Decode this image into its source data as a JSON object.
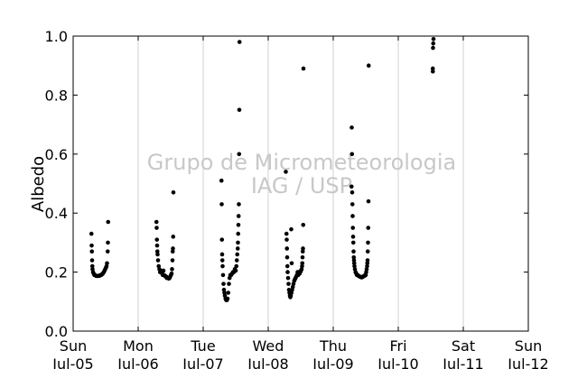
{
  "chart_data": {
    "type": "scatter",
    "title": "",
    "xlabel": "",
    "ylabel": "Albedo",
    "ylim": [
      0.0,
      1.0
    ],
    "y_ticks": [
      "0.0",
      "0.2",
      "0.4",
      "0.6",
      "0.8",
      "1.0"
    ],
    "xlim": [
      "2014-07-05 00:00",
      "2014-07-12 00:00"
    ],
    "x_ticks": [
      {
        "day": "Sun",
        "date": "Jul-05"
      },
      {
        "day": "Mon",
        "date": "Jul-06"
      },
      {
        "day": "Tue",
        "date": "Jul-07"
      },
      {
        "day": "Wed",
        "date": "Jul-08"
      },
      {
        "day": "Thu",
        "date": "Jul-09"
      },
      {
        "day": "Fri",
        "date": "Jul-10"
      },
      {
        "day": "Sat",
        "date": "Jul-11"
      },
      {
        "day": "Sun",
        "date": "Jul-12"
      }
    ],
    "grid": "vertical",
    "marker_color": "#000000",
    "watermark": [
      "Grupo de Micrometeorologia",
      "IAG / USP"
    ],
    "series": [
      {
        "points": [
          [
            "2014-07-05 06:45",
            0.33
          ],
          [
            "2014-07-05 06:50",
            0.29
          ],
          [
            "2014-07-05 06:55",
            0.27
          ],
          [
            "2014-07-05 07:00",
            0.24
          ],
          [
            "2014-07-05 07:05",
            0.22
          ],
          [
            "2014-07-05 07:10",
            0.21
          ],
          [
            "2014-07-05 07:20",
            0.2
          ],
          [
            "2014-07-05 07:35",
            0.195
          ],
          [
            "2014-07-05 07:50",
            0.19
          ],
          [
            "2014-07-05 08:05",
            0.19
          ],
          [
            "2014-07-05 08:20",
            0.188
          ],
          [
            "2014-07-05 08:35",
            0.187
          ],
          [
            "2014-07-05 08:50",
            0.187
          ],
          [
            "2014-07-05 09:05",
            0.187
          ],
          [
            "2014-07-05 09:20",
            0.187
          ],
          [
            "2014-07-05 09:35",
            0.188
          ],
          [
            "2014-07-05 09:50",
            0.188
          ],
          [
            "2014-07-05 10:05",
            0.19
          ],
          [
            "2014-07-05 10:20",
            0.19
          ],
          [
            "2014-07-05 10:35",
            0.192
          ],
          [
            "2014-07-05 10:50",
            0.194
          ],
          [
            "2014-07-05 11:05",
            0.197
          ],
          [
            "2014-07-05 11:20",
            0.2
          ],
          [
            "2014-07-05 11:35",
            0.205
          ],
          [
            "2014-07-05 11:50",
            0.21
          ],
          [
            "2014-07-05 12:05",
            0.215
          ],
          [
            "2014-07-05 12:20",
            0.22
          ],
          [
            "2014-07-05 12:30",
            0.23
          ],
          [
            "2014-07-05 12:45",
            0.27
          ],
          [
            "2014-07-05 12:50",
            0.3
          ],
          [
            "2014-07-05 12:55",
            0.37
          ],
          [
            "2014-07-06 06:45",
            0.37
          ],
          [
            "2014-07-06 06:50",
            0.35
          ],
          [
            "2014-07-06 06:55",
            0.31
          ],
          [
            "2014-07-06 07:00",
            0.29
          ],
          [
            "2014-07-06 07:05",
            0.27
          ],
          [
            "2014-07-06 07:10",
            0.26
          ],
          [
            "2014-07-06 07:20",
            0.24
          ],
          [
            "2014-07-06 07:35",
            0.22
          ],
          [
            "2014-07-06 07:50",
            0.21
          ],
          [
            "2014-07-06 08:05",
            0.2
          ],
          [
            "2014-07-06 08:20",
            0.205
          ],
          [
            "2014-07-06 08:35",
            0.2
          ],
          [
            "2014-07-06 08:50",
            0.195
          ],
          [
            "2014-07-06 09:05",
            0.19
          ],
          [
            "2014-07-06 09:20",
            0.205
          ],
          [
            "2014-07-06 09:35",
            0.19
          ],
          [
            "2014-07-06 09:50",
            0.188
          ],
          [
            "2014-07-06 10:05",
            0.185
          ],
          [
            "2014-07-06 10:20",
            0.185
          ],
          [
            "2014-07-06 10:35",
            0.18
          ],
          [
            "2014-07-06 10:50",
            0.18
          ],
          [
            "2014-07-06 11:05",
            0.18
          ],
          [
            "2014-07-06 11:20",
            0.178
          ],
          [
            "2014-07-06 11:35",
            0.18
          ],
          [
            "2014-07-06 11:50",
            0.185
          ],
          [
            "2014-07-06 12:05",
            0.19
          ],
          [
            "2014-07-06 12:20",
            0.195
          ],
          [
            "2014-07-06 12:30",
            0.21
          ],
          [
            "2014-07-06 12:40",
            0.24
          ],
          [
            "2014-07-06 12:45",
            0.27
          ],
          [
            "2014-07-06 12:50",
            0.28
          ],
          [
            "2014-07-06 12:55",
            0.32
          ],
          [
            "2014-07-06 13:00",
            0.47
          ],
          [
            "2014-07-07 06:45",
            0.51
          ],
          [
            "2014-07-07 06:50",
            0.43
          ],
          [
            "2014-07-07 06:55",
            0.31
          ],
          [
            "2014-07-07 07:00",
            0.26
          ],
          [
            "2014-07-07 07:05",
            0.24
          ],
          [
            "2014-07-07 07:10",
            0.22
          ],
          [
            "2014-07-07 07:20",
            0.19
          ],
          [
            "2014-07-07 07:30",
            0.16
          ],
          [
            "2014-07-07 07:40",
            0.14
          ],
          [
            "2014-07-07 07:50",
            0.13
          ],
          [
            "2014-07-07 08:00",
            0.12
          ],
          [
            "2014-07-07 08:15",
            0.11
          ],
          [
            "2014-07-07 08:30",
            0.105
          ],
          [
            "2014-07-07 08:45",
            0.105
          ],
          [
            "2014-07-07 09:00",
            0.11
          ],
          [
            "2014-07-07 09:15",
            0.13
          ],
          [
            "2014-07-07 09:30",
            0.16
          ],
          [
            "2014-07-07 09:45",
            0.18
          ],
          [
            "2014-07-07 10:00",
            0.19
          ],
          [
            "2014-07-07 10:20",
            0.19
          ],
          [
            "2014-07-07 10:40",
            0.195
          ],
          [
            "2014-07-07 11:00",
            0.2
          ],
          [
            "2014-07-07 11:20",
            0.2
          ],
          [
            "2014-07-07 11:40",
            0.21
          ],
          [
            "2014-07-07 12:00",
            0.205
          ],
          [
            "2014-07-07 12:15",
            0.22
          ],
          [
            "2014-07-07 12:25",
            0.24
          ],
          [
            "2014-07-07 12:35",
            0.26
          ],
          [
            "2014-07-07 12:45",
            0.28
          ],
          [
            "2014-07-07 12:50",
            0.3
          ],
          [
            "2014-07-07 12:55",
            0.33
          ],
          [
            "2014-07-07 13:00",
            0.36
          ],
          [
            "2014-07-07 13:05",
            0.39
          ],
          [
            "2014-07-07 13:10",
            0.43
          ],
          [
            "2014-07-07 13:15",
            0.6
          ],
          [
            "2014-07-07 13:20",
            0.75
          ],
          [
            "2014-07-07 13:25",
            0.98
          ],
          [
            "2014-07-08 06:30",
            0.54
          ],
          [
            "2014-07-08 06:45",
            0.33
          ],
          [
            "2014-07-08 06:50",
            0.31
          ],
          [
            "2014-07-08 06:55",
            0.28
          ],
          [
            "2014-07-08 07:00",
            0.25
          ],
          [
            "2014-07-08 07:05",
            0.22
          ],
          [
            "2014-07-08 07:10",
            0.2
          ],
          [
            "2014-07-08 07:20",
            0.18
          ],
          [
            "2014-07-08 07:30",
            0.16
          ],
          [
            "2014-07-08 07:40",
            0.14
          ],
          [
            "2014-07-08 07:50",
            0.13
          ],
          [
            "2014-07-08 08:00",
            0.12
          ],
          [
            "2014-07-08 08:10",
            0.115
          ],
          [
            "2014-07-08 08:20",
            0.12
          ],
          [
            "2014-07-08 08:35",
            0.13
          ],
          [
            "2014-07-08 08:50",
            0.14
          ],
          [
            "2014-07-08 09:05",
            0.15
          ],
          [
            "2014-07-08 09:20",
            0.16
          ],
          [
            "2014-07-08 09:35",
            0.17
          ],
          [
            "2014-07-08 09:50",
            0.175
          ],
          [
            "2014-07-08 10:05",
            0.18
          ],
          [
            "2014-07-08 10:20",
            0.185
          ],
          [
            "2014-07-08 10:35",
            0.19
          ],
          [
            "2014-07-08 10:50",
            0.2
          ],
          [
            "2014-07-08 11:05",
            0.19
          ],
          [
            "2014-07-08 11:20",
            0.2
          ],
          [
            "2014-07-08 11:35",
            0.195
          ],
          [
            "2014-07-08 11:50",
            0.2
          ],
          [
            "2014-07-08 12:05",
            0.205
          ],
          [
            "2014-07-08 12:20",
            0.21
          ],
          [
            "2014-07-08 12:30",
            0.22
          ],
          [
            "2014-07-08 12:35",
            0.23
          ],
          [
            "2014-07-08 12:40",
            0.25
          ],
          [
            "2014-07-08 12:45",
            0.27
          ],
          [
            "2014-07-08 12:50",
            0.28
          ],
          [
            "2014-07-08 12:55",
            0.36
          ],
          [
            "2014-07-08 13:00",
            0.89
          ],
          [
            "2014-07-08 08:30",
            0.345
          ],
          [
            "2014-07-08 08:40",
            0.23
          ],
          [
            "2014-07-09 06:45",
            0.49
          ],
          [
            "2014-07-09 06:50",
            0.69
          ],
          [
            "2014-07-09 06:55",
            0.6
          ],
          [
            "2014-07-09 07:00",
            0.47
          ],
          [
            "2014-07-09 07:05",
            0.43
          ],
          [
            "2014-07-09 07:10",
            0.39
          ],
          [
            "2014-07-09 07:15",
            0.35
          ],
          [
            "2014-07-09 07:20",
            0.32
          ],
          [
            "2014-07-09 07:25",
            0.3
          ],
          [
            "2014-07-09 07:30",
            0.27
          ],
          [
            "2014-07-09 07:35",
            0.25
          ],
          [
            "2014-07-09 07:40",
            0.24
          ],
          [
            "2014-07-09 07:45",
            0.23
          ],
          [
            "2014-07-09 07:50",
            0.22
          ],
          [
            "2014-07-09 08:00",
            0.21
          ],
          [
            "2014-07-09 08:15",
            0.2
          ],
          [
            "2014-07-09 08:30",
            0.195
          ],
          [
            "2014-07-09 08:45",
            0.19
          ],
          [
            "2014-07-09 09:00",
            0.19
          ],
          [
            "2014-07-09 09:15",
            0.188
          ],
          [
            "2014-07-09 09:30",
            0.186
          ],
          [
            "2014-07-09 09:45",
            0.185
          ],
          [
            "2014-07-09 10:00",
            0.184
          ],
          [
            "2014-07-09 10:15",
            0.183
          ],
          [
            "2014-07-09 10:30",
            0.182
          ],
          [
            "2014-07-09 10:45",
            0.183
          ],
          [
            "2014-07-09 11:00",
            0.185
          ],
          [
            "2014-07-09 11:15",
            0.186
          ],
          [
            "2014-07-09 11:30",
            0.187
          ],
          [
            "2014-07-09 11:45",
            0.19
          ],
          [
            "2014-07-09 12:00",
            0.19
          ],
          [
            "2014-07-09 12:10",
            0.2
          ],
          [
            "2014-07-09 12:20",
            0.21
          ],
          [
            "2014-07-09 12:30",
            0.22
          ],
          [
            "2014-07-09 12:35",
            0.23
          ],
          [
            "2014-07-09 12:40",
            0.24
          ],
          [
            "2014-07-09 12:45",
            0.27
          ],
          [
            "2014-07-09 12:50",
            0.3
          ],
          [
            "2014-07-09 12:55",
            0.35
          ],
          [
            "2014-07-09 13:00",
            0.44
          ],
          [
            "2014-07-09 13:05",
            0.9
          ],
          [
            "2014-07-10 12:45",
            0.89
          ],
          [
            "2014-07-10 12:46",
            0.88
          ],
          [
            "2014-07-10 12:50",
            0.96
          ],
          [
            "2014-07-10 12:55",
            0.975
          ],
          [
            "2014-07-10 13:00",
            0.99
          ]
        ]
      }
    ]
  }
}
